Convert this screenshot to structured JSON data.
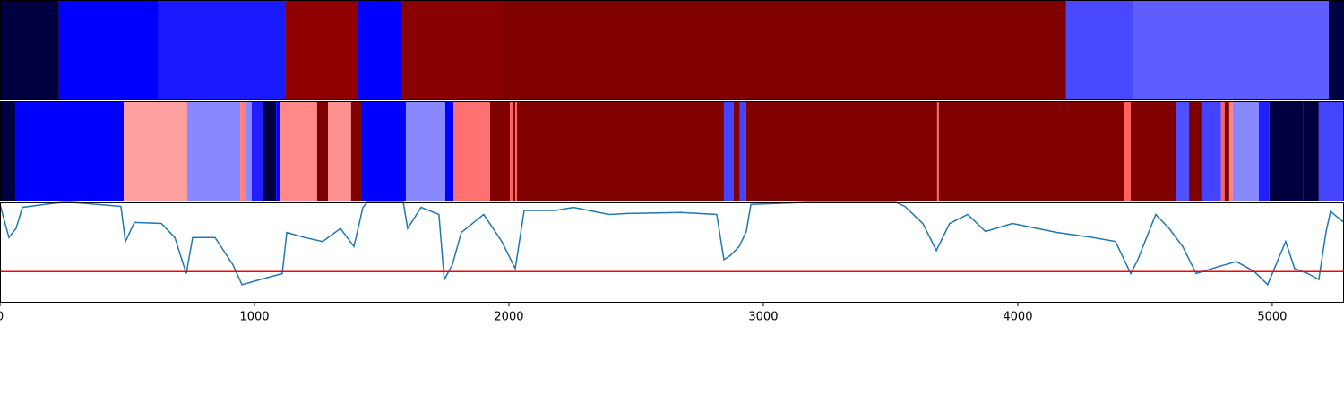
{
  "chart_data": [
    {
      "type": "segments",
      "xlim": [
        0,
        5282
      ],
      "edges": [
        0,
        232,
        623,
        1120,
        1408,
        1577,
        1972,
        4190,
        4451,
        5222,
        5282
      ],
      "colors": [
        "#000040",
        "#0000ff",
        "#1a1aff",
        "#900000",
        "#0000ff",
        "#880000",
        "#800000",
        "#4848ff",
        "#5e5eff",
        "#000040"
      ]
    },
    {
      "type": "segments",
      "xlim": [
        0,
        5282
      ],
      "edges": [
        0,
        63,
        486,
        736,
        944,
        965,
        989,
        1035,
        1085,
        1102,
        1246,
        1289,
        1380,
        1419,
        1595,
        1750,
        1782,
        1926,
        2004,
        2014,
        2025,
        2032,
        2845,
        2884,
        2908,
        2933,
        3683,
        3690,
        4419,
        4444,
        4620,
        4673,
        4722,
        4799,
        4813,
        4831,
        4845,
        4947,
        4989,
        5123,
        5183,
        5282
      ],
      "colors": [
        "#000040",
        "#0000ff",
        "#ffa0a0",
        "#8888ff",
        "#ff8080",
        "#8888ff",
        "#2020ff",
        "#000040",
        "#0000ff",
        "#ff8888",
        "#800000",
        "#ff9090",
        "#800000",
        "#0000ff",
        "#8888ff",
        "#0000ff",
        "#ff7070",
        "#800000",
        "#ff6060",
        "#800000",
        "#ff6060",
        "#800000",
        "#4444ff",
        "#800000",
        "#4444ff",
        "#800000",
        "#ff6060",
        "#800000",
        "#ff6060",
        "#800000",
        "#5050ff",
        "#800000",
        "#4444ff",
        "#ff6060",
        "#800000",
        "#ff8080",
        "#8888ff",
        "#2020ff",
        "#000040",
        "#000040",
        "#4444ff"
      ]
    },
    {
      "type": "line",
      "xlim": [
        0,
        5282
      ],
      "ylim": [
        0,
        1
      ],
      "color": "#1f77b4",
      "xticks": [
        0,
        1000,
        2000,
        3000,
        4000,
        5000
      ],
      "hline": {
        "value": 0.31,
        "color": "#ff0000"
      },
      "x": [
        0,
        35,
        63,
        88,
        176,
        246,
        282,
        475,
        493,
        528,
        634,
        687,
        732,
        757,
        845,
        915,
        951,
        1021,
        1109,
        1127,
        1197,
        1268,
        1338,
        1391,
        1426,
        1444,
        1585,
        1602,
        1655,
        1725,
        1746,
        1778,
        1813,
        1901,
        1972,
        2025,
        2060,
        2183,
        2254,
        2394,
        2465,
        2676,
        2817,
        2845,
        2870,
        2905,
        2933,
        2951,
        3169,
        3521,
        3556,
        3627,
        3680,
        3732,
        3803,
        3873,
        3979,
        4155,
        4296,
        4384,
        4444,
        4472,
        4542,
        4595,
        4648,
        4701,
        4789,
        4859,
        4930,
        4982,
        5053,
        5088,
        5141,
        5183,
        5211,
        5229,
        5282
      ],
      "values": [
        0.98,
        0.65,
        0.74,
        0.95,
        0.98,
        1.0,
        1.0,
        0.96,
        0.61,
        0.8,
        0.79,
        0.65,
        0.29,
        0.65,
        0.65,
        0.38,
        0.18,
        0.23,
        0.29,
        0.7,
        0.65,
        0.61,
        0.74,
        0.56,
        0.95,
        1.0,
        1.0,
        0.74,
        0.95,
        0.88,
        0.23,
        0.38,
        0.7,
        0.88,
        0.61,
        0.34,
        0.92,
        0.92,
        0.95,
        0.88,
        0.89,
        0.9,
        0.88,
        0.43,
        0.47,
        0.56,
        0.71,
        0.98,
        1.0,
        1.0,
        0.96,
        0.79,
        0.52,
        0.79,
        0.88,
        0.71,
        0.79,
        0.7,
        0.65,
        0.61,
        0.29,
        0.43,
        0.88,
        0.74,
        0.56,
        0.29,
        0.36,
        0.41,
        0.31,
        0.18,
        0.61,
        0.34,
        0.29,
        0.23,
        0.7,
        0.91,
        0.8
      ]
    }
  ]
}
